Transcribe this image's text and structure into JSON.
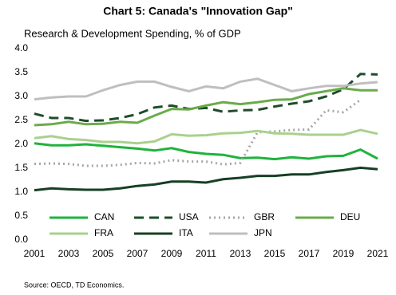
{
  "chart_data": {
    "type": "line",
    "title": "Chart 5: Canada's \"Innovation Gap\"",
    "subtitle": "Research & Development Spending, % of GDP",
    "source": "Source: OECD,  TD Economics.",
    "x": [
      2001,
      2002,
      2003,
      2004,
      2005,
      2006,
      2007,
      2008,
      2009,
      2010,
      2011,
      2012,
      2013,
      2014,
      2015,
      2016,
      2017,
      2018,
      2019,
      2020,
      2021
    ],
    "xlim": [
      2001,
      2021
    ],
    "xticks": [
      2001,
      2003,
      2005,
      2007,
      2009,
      2011,
      2013,
      2015,
      2017,
      2019,
      2021
    ],
    "ylim": [
      0,
      4
    ],
    "yticks": [
      {
        "value": 0,
        "label": "0.0"
      },
      {
        "value": 0.5,
        "label": "0.5"
      },
      {
        "value": 1,
        "label": "1.0"
      },
      {
        "value": 1.5,
        "label": "1.5"
      },
      {
        "value": 2,
        "label": "2.0"
      },
      {
        "value": 2.5,
        "label": "2.5"
      },
      {
        "value": 3,
        "label": "3.0"
      },
      {
        "value": 3.5,
        "label": "3.5"
      },
      {
        "value": 4,
        "label": "4.0"
      }
    ],
    "grid": false,
    "legend": "bottom",
    "series": [
      {
        "name": "CAN",
        "color": "#1fb33b",
        "style": "solid",
        "values": [
          2.02,
          1.98,
          1.98,
          2.0,
          1.97,
          1.94,
          1.91,
          1.87,
          1.92,
          1.84,
          1.8,
          1.78,
          1.71,
          1.72,
          1.69,
          1.73,
          1.7,
          1.75,
          1.76,
          1.89,
          1.7
        ]
      },
      {
        "name": "USA",
        "color": "#1e4d2b",
        "style": "dashed",
        "values": [
          2.64,
          2.55,
          2.55,
          2.49,
          2.5,
          2.55,
          2.63,
          2.77,
          2.81,
          2.74,
          2.76,
          2.68,
          2.71,
          2.72,
          2.79,
          2.85,
          2.9,
          3.0,
          3.15,
          3.47,
          3.46
        ]
      },
      {
        "name": "GBR",
        "color": "#a6a6a6",
        "style": "dotted",
        "values": [
          1.59,
          1.6,
          1.59,
          1.55,
          1.55,
          1.57,
          1.61,
          1.6,
          1.67,
          1.64,
          1.64,
          1.58,
          1.61,
          2.25,
          2.27,
          2.3,
          2.31,
          2.71,
          2.67,
          2.93,
          null
        ]
      },
      {
        "name": "DEU",
        "color": "#6aab4a",
        "style": "solid",
        "values": [
          2.4,
          2.42,
          2.47,
          2.42,
          2.43,
          2.47,
          2.45,
          2.6,
          2.74,
          2.73,
          2.81,
          2.88,
          2.84,
          2.88,
          2.93,
          2.94,
          3.05,
          3.11,
          3.17,
          3.13,
          3.13
        ]
      },
      {
        "name": "FRA",
        "color": "#a9d18e",
        "style": "solid",
        "values": [
          2.13,
          2.17,
          2.11,
          2.09,
          2.05,
          2.05,
          2.02,
          2.06,
          2.21,
          2.18,
          2.19,
          2.23,
          2.24,
          2.28,
          2.23,
          2.22,
          2.2,
          2.2,
          2.2,
          2.3,
          2.22
        ]
      },
      {
        "name": "ITA",
        "color": "#173f24",
        "style": "solid",
        "values": [
          1.04,
          1.08,
          1.06,
          1.05,
          1.05,
          1.08,
          1.13,
          1.16,
          1.22,
          1.22,
          1.2,
          1.27,
          1.3,
          1.34,
          1.34,
          1.37,
          1.37,
          1.42,
          1.46,
          1.51,
          1.48
        ]
      },
      {
        "name": "JPN",
        "color": "#bfbfbf",
        "style": "solid",
        "values": [
          2.94,
          2.98,
          3.0,
          3.0,
          3.13,
          3.24,
          3.31,
          3.31,
          3.2,
          3.11,
          3.21,
          3.17,
          3.31,
          3.37,
          3.24,
          3.11,
          3.17,
          3.22,
          3.22,
          3.27,
          3.3
        ]
      }
    ]
  }
}
